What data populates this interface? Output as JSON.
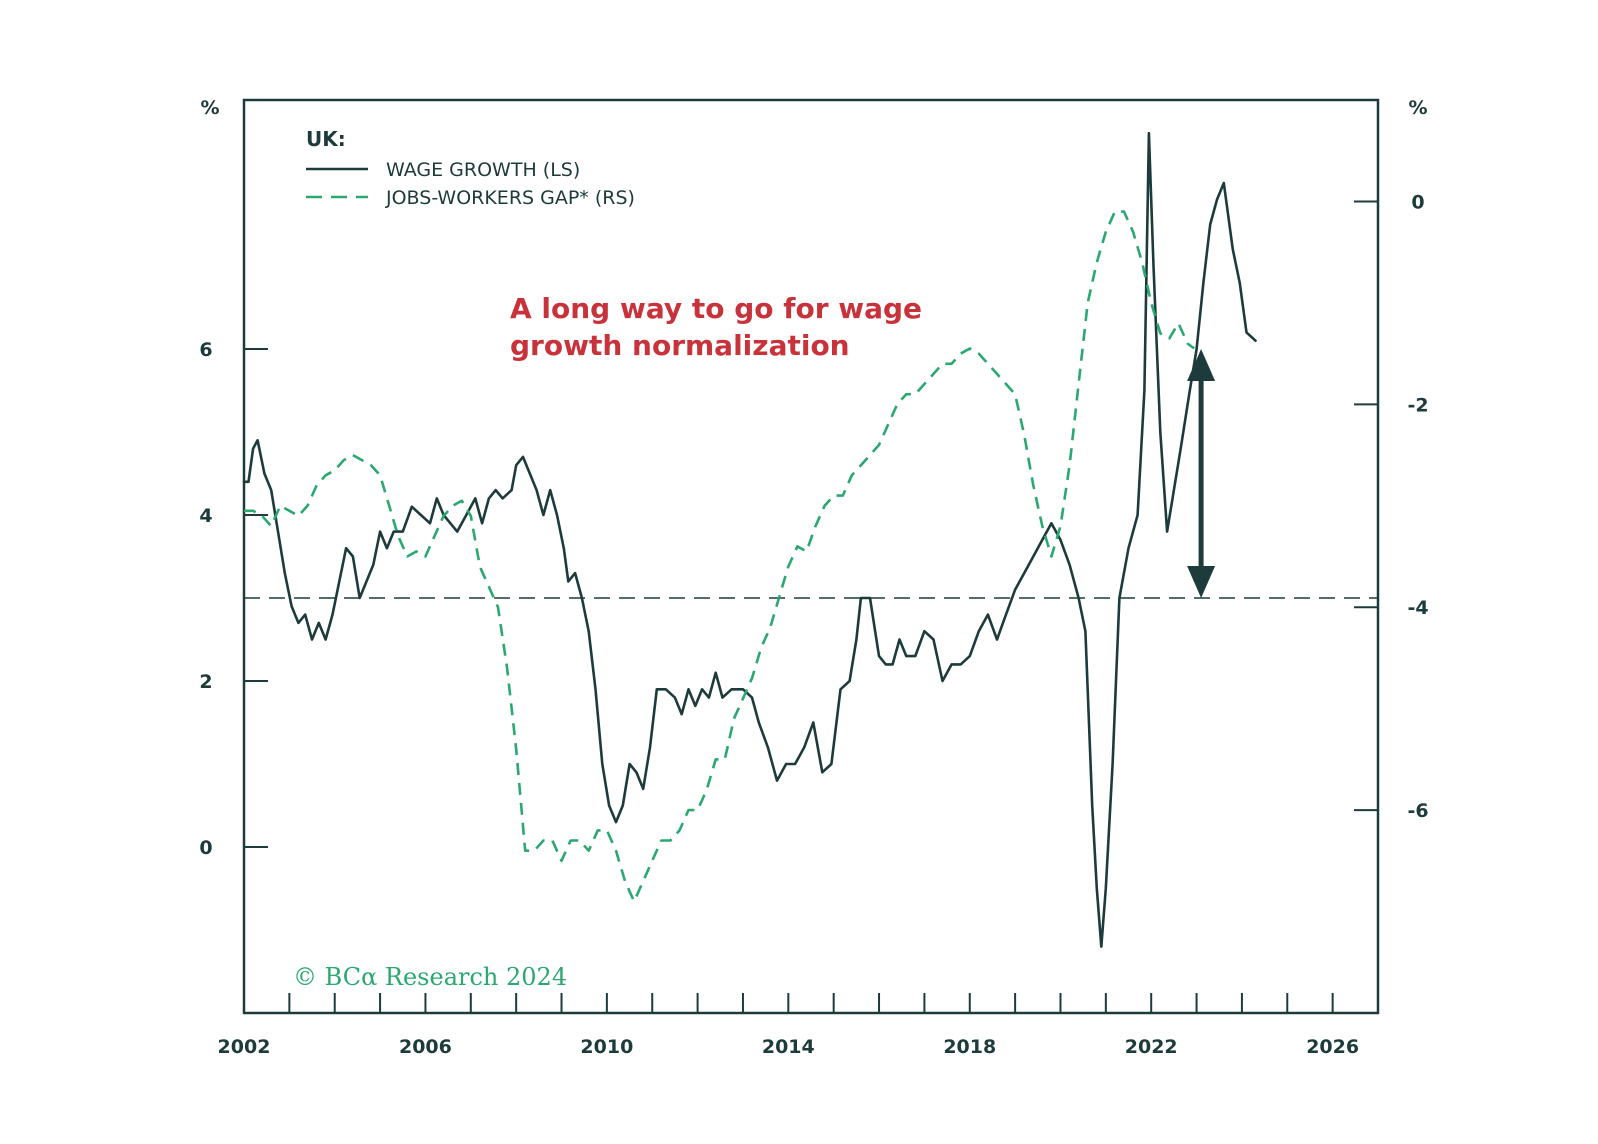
{
  "colors": {
    "wage": "#1d3b3b",
    "gap": "#2aa870",
    "axis": "#1d3b3b",
    "annotation": "#c8323a",
    "copyright": "#2aa870"
  },
  "chart_data": {
    "type": "line",
    "x_range": [
      2002,
      2027
    ],
    "x_ticks": [
      "2002",
      "2006",
      "2010",
      "2014",
      "2018",
      "2022",
      "2026"
    ],
    "left_axis": {
      "unit": "%",
      "range": [
        -2,
        9
      ],
      "ticks": [
        "0",
        "2",
        "4",
        "6"
      ]
    },
    "right_axis": {
      "unit": "%",
      "range": [
        -8,
        1
      ],
      "ticks": [
        "0",
        "-2",
        "-4",
        "-6"
      ]
    },
    "legend": {
      "title": "UK:",
      "items": [
        "WAGE GROWTH (LS)",
        "JOBS-WORKERS GAP* (RS)"
      ]
    },
    "reference_line": {
      "axis": "left",
      "y": 3.0
    },
    "annotation": [
      "A long way to go for wage",
      "growth normalization"
    ],
    "arrow": {
      "x": 2023.1,
      "from": 3.0,
      "to": 6.0
    },
    "copyright": "© BCα Research 2024",
    "series": [
      {
        "name": "WAGE GROWTH (LS)",
        "axis": "left",
        "style": "solid",
        "points": [
          [
            2002.0,
            4.4
          ],
          [
            2002.1,
            4.4
          ],
          [
            2002.2,
            4.8
          ],
          [
            2002.3,
            4.9
          ],
          [
            2002.45,
            4.5
          ],
          [
            2002.6,
            4.3
          ],
          [
            2002.75,
            3.8
          ],
          [
            2002.9,
            3.3
          ],
          [
            2003.05,
            2.9
          ],
          [
            2003.2,
            2.7
          ],
          [
            2003.35,
            2.8
          ],
          [
            2003.5,
            2.5
          ],
          [
            2003.65,
            2.7
          ],
          [
            2003.8,
            2.5
          ],
          [
            2003.95,
            2.8
          ],
          [
            2004.1,
            3.2
          ],
          [
            2004.25,
            3.6
          ],
          [
            2004.4,
            3.5
          ],
          [
            2004.55,
            3.0
          ],
          [
            2004.7,
            3.2
          ],
          [
            2004.85,
            3.4
          ],
          [
            2005.0,
            3.8
          ],
          [
            2005.15,
            3.6
          ],
          [
            2005.3,
            3.8
          ],
          [
            2005.5,
            3.8
          ],
          [
            2005.7,
            4.1
          ],
          [
            2005.9,
            4.0
          ],
          [
            2006.1,
            3.9
          ],
          [
            2006.25,
            4.2
          ],
          [
            2006.4,
            4.0
          ],
          [
            2006.55,
            3.9
          ],
          [
            2006.7,
            3.8
          ],
          [
            2006.9,
            4.0
          ],
          [
            2007.1,
            4.2
          ],
          [
            2007.25,
            3.9
          ],
          [
            2007.4,
            4.2
          ],
          [
            2007.55,
            4.3
          ],
          [
            2007.7,
            4.2
          ],
          [
            2007.9,
            4.3
          ],
          [
            2008.0,
            4.6
          ],
          [
            2008.15,
            4.7
          ],
          [
            2008.3,
            4.5
          ],
          [
            2008.45,
            4.3
          ],
          [
            2008.6,
            4.0
          ],
          [
            2008.75,
            4.3
          ],
          [
            2008.9,
            4.0
          ],
          [
            2009.05,
            3.6
          ],
          [
            2009.15,
            3.2
          ],
          [
            2009.3,
            3.3
          ],
          [
            2009.45,
            3.0
          ],
          [
            2009.6,
            2.6
          ],
          [
            2009.75,
            1.9
          ],
          [
            2009.9,
            1.0
          ],
          [
            2010.05,
            0.5
          ],
          [
            2010.2,
            0.3
          ],
          [
            2010.35,
            0.5
          ],
          [
            2010.5,
            1.0
          ],
          [
            2010.65,
            0.9
          ],
          [
            2010.8,
            0.7
          ],
          [
            2010.95,
            1.2
          ],
          [
            2011.1,
            1.9
          ],
          [
            2011.3,
            1.9
          ],
          [
            2011.5,
            1.8
          ],
          [
            2011.65,
            1.6
          ],
          [
            2011.8,
            1.9
          ],
          [
            2011.95,
            1.7
          ],
          [
            2012.1,
            1.9
          ],
          [
            2012.25,
            1.8
          ],
          [
            2012.4,
            2.1
          ],
          [
            2012.55,
            1.8
          ],
          [
            2012.75,
            1.9
          ],
          [
            2013.0,
            1.9
          ],
          [
            2013.2,
            1.8
          ],
          [
            2013.35,
            1.5
          ],
          [
            2013.55,
            1.2
          ],
          [
            2013.75,
            0.8
          ],
          [
            2013.95,
            1.0
          ],
          [
            2014.15,
            1.0
          ],
          [
            2014.35,
            1.2
          ],
          [
            2014.55,
            1.5
          ],
          [
            2014.75,
            0.9
          ],
          [
            2014.95,
            1.0
          ],
          [
            2015.15,
            1.9
          ],
          [
            2015.35,
            2.0
          ],
          [
            2015.5,
            2.5
          ],
          [
            2015.6,
            3.0
          ],
          [
            2015.8,
            3.0
          ],
          [
            2016.0,
            2.3
          ],
          [
            2016.15,
            2.2
          ],
          [
            2016.3,
            2.2
          ],
          [
            2016.45,
            2.5
          ],
          [
            2016.6,
            2.3
          ],
          [
            2016.8,
            2.3
          ],
          [
            2017.0,
            2.6
          ],
          [
            2017.2,
            2.5
          ],
          [
            2017.4,
            2.0
          ],
          [
            2017.6,
            2.2
          ],
          [
            2017.8,
            2.2
          ],
          [
            2018.0,
            2.3
          ],
          [
            2018.2,
            2.6
          ],
          [
            2018.4,
            2.8
          ],
          [
            2018.6,
            2.5
          ],
          [
            2018.8,
            2.8
          ],
          [
            2019.0,
            3.1
          ],
          [
            2019.2,
            3.3
          ],
          [
            2019.4,
            3.5
          ],
          [
            2019.6,
            3.7
          ],
          [
            2019.8,
            3.9
          ],
          [
            2020.0,
            3.7
          ],
          [
            2020.2,
            3.4
          ],
          [
            2020.4,
            3.0
          ],
          [
            2020.55,
            2.6
          ],
          [
            2020.7,
            0.5
          ],
          [
            2020.8,
            -0.5
          ],
          [
            2020.9,
            -1.2
          ],
          [
            2021.0,
            -0.5
          ],
          [
            2021.15,
            1.0
          ],
          [
            2021.3,
            3.0
          ],
          [
            2021.5,
            3.6
          ],
          [
            2021.7,
            4.0
          ],
          [
            2021.85,
            5.5
          ],
          [
            2021.95,
            8.6
          ],
          [
            2022.05,
            7.0
          ],
          [
            2022.2,
            5.0
          ],
          [
            2022.35,
            3.8
          ],
          [
            2022.5,
            4.3
          ],
          [
            2022.65,
            4.8
          ],
          [
            2022.85,
            5.5
          ],
          [
            2023.0,
            6.0
          ],
          [
            2023.15,
            6.8
          ],
          [
            2023.3,
            7.5
          ],
          [
            2023.45,
            7.8
          ],
          [
            2023.6,
            8.0
          ],
          [
            2023.8,
            7.2
          ],
          [
            2023.95,
            6.8
          ],
          [
            2024.1,
            6.2
          ],
          [
            2024.3,
            6.1
          ]
        ]
      },
      {
        "name": "JOBS-WORKERS GAP* (RS)",
        "axis": "right",
        "style": "dashed",
        "points": [
          [
            2002.0,
            -3.05
          ],
          [
            2002.2,
            -3.05
          ],
          [
            2002.4,
            -3.1
          ],
          [
            2002.6,
            -3.2
          ],
          [
            2002.8,
            -3.0
          ],
          [
            2003.0,
            -3.05
          ],
          [
            2003.2,
            -3.1
          ],
          [
            2003.4,
            -3.0
          ],
          [
            2003.6,
            -2.8
          ],
          [
            2003.8,
            -2.7
          ],
          [
            2004.0,
            -2.65
          ],
          [
            2004.2,
            -2.55
          ],
          [
            2004.4,
            -2.5
          ],
          [
            2004.6,
            -2.55
          ],
          [
            2004.8,
            -2.6
          ],
          [
            2005.0,
            -2.7
          ],
          [
            2005.2,
            -3.0
          ],
          [
            2005.4,
            -3.3
          ],
          [
            2005.6,
            -3.5
          ],
          [
            2005.8,
            -3.45
          ],
          [
            2006.0,
            -3.5
          ],
          [
            2006.2,
            -3.3
          ],
          [
            2006.4,
            -3.1
          ],
          [
            2006.6,
            -3.0
          ],
          [
            2006.8,
            -2.95
          ],
          [
            2007.0,
            -3.1
          ],
          [
            2007.2,
            -3.6
          ],
          [
            2007.4,
            -3.8
          ],
          [
            2007.6,
            -4.0
          ],
          [
            2007.8,
            -4.6
          ],
          [
            2008.0,
            -5.4
          ],
          [
            2008.2,
            -6.4
          ],
          [
            2008.4,
            -6.4
          ],
          [
            2008.6,
            -6.3
          ],
          [
            2008.8,
            -6.3
          ],
          [
            2009.0,
            -6.5
          ],
          [
            2009.2,
            -6.3
          ],
          [
            2009.4,
            -6.3
          ],
          [
            2009.6,
            -6.4
          ],
          [
            2009.8,
            -6.2
          ],
          [
            2010.0,
            -6.2
          ],
          [
            2010.2,
            -6.4
          ],
          [
            2010.4,
            -6.7
          ],
          [
            2010.6,
            -6.9
          ],
          [
            2010.8,
            -6.7
          ],
          [
            2011.0,
            -6.5
          ],
          [
            2011.2,
            -6.3
          ],
          [
            2011.4,
            -6.3
          ],
          [
            2011.6,
            -6.2
          ],
          [
            2011.8,
            -6.0
          ],
          [
            2012.0,
            -6.0
          ],
          [
            2012.2,
            -5.8
          ],
          [
            2012.4,
            -5.5
          ],
          [
            2012.6,
            -5.5
          ],
          [
            2012.8,
            -5.1
          ],
          [
            2013.0,
            -4.9
          ],
          [
            2013.2,
            -4.7
          ],
          [
            2013.4,
            -4.4
          ],
          [
            2013.6,
            -4.2
          ],
          [
            2013.8,
            -3.9
          ],
          [
            2014.0,
            -3.6
          ],
          [
            2014.2,
            -3.4
          ],
          [
            2014.4,
            -3.45
          ],
          [
            2014.6,
            -3.2
          ],
          [
            2014.8,
            -3.0
          ],
          [
            2015.0,
            -2.9
          ],
          [
            2015.2,
            -2.9
          ],
          [
            2015.4,
            -2.7
          ],
          [
            2015.6,
            -2.6
          ],
          [
            2015.8,
            -2.5
          ],
          [
            2016.0,
            -2.4
          ],
          [
            2016.2,
            -2.2
          ],
          [
            2016.4,
            -2.0
          ],
          [
            2016.6,
            -1.9
          ],
          [
            2016.8,
            -1.9
          ],
          [
            2017.0,
            -1.8
          ],
          [
            2017.2,
            -1.7
          ],
          [
            2017.4,
            -1.6
          ],
          [
            2017.6,
            -1.6
          ],
          [
            2017.8,
            -1.5
          ],
          [
            2018.0,
            -1.45
          ],
          [
            2018.2,
            -1.5
          ],
          [
            2018.4,
            -1.6
          ],
          [
            2018.6,
            -1.7
          ],
          [
            2018.8,
            -1.8
          ],
          [
            2019.0,
            -1.9
          ],
          [
            2019.2,
            -2.3
          ],
          [
            2019.4,
            -2.8
          ],
          [
            2019.6,
            -3.2
          ],
          [
            2019.8,
            -3.5
          ],
          [
            2020.0,
            -3.2
          ],
          [
            2020.2,
            -2.6
          ],
          [
            2020.4,
            -1.8
          ],
          [
            2020.6,
            -1.0
          ],
          [
            2020.8,
            -0.6
          ],
          [
            2021.0,
            -0.3
          ],
          [
            2021.2,
            -0.1
          ],
          [
            2021.4,
            -0.1
          ],
          [
            2021.6,
            -0.3
          ],
          [
            2021.8,
            -0.6
          ],
          [
            2022.0,
            -1.0
          ],
          [
            2022.2,
            -1.3
          ],
          [
            2022.4,
            -1.35
          ],
          [
            2022.6,
            -1.2
          ],
          [
            2022.8,
            -1.4
          ],
          [
            2022.95,
            -1.45
          ]
        ]
      }
    ]
  }
}
